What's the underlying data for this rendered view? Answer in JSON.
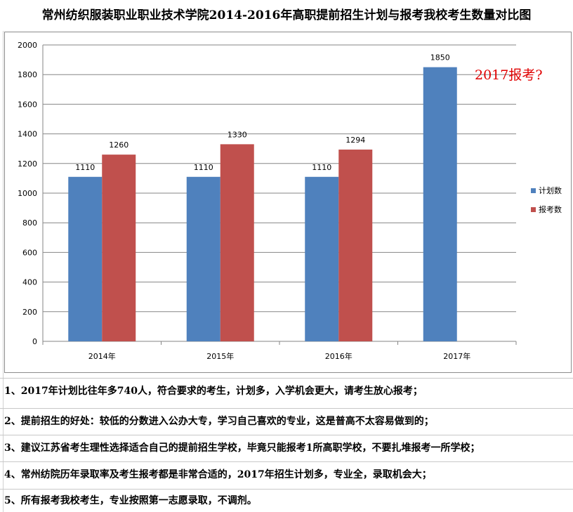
{
  "title": "常州纺织服装职业职业技术学院2014-2016年高职提前招生计划与报考我校考生数量对比图",
  "annotation": "2017报考?",
  "notes": [
    "1、2017年计划比往年多740人，符合要求的考生，计划多，入学机会更大，请考生放心报考；",
    "2、提前招生的好处：较低的分数进入公办大专，学习自己喜欢的专业，这是普高不太容易做到的；",
    "3、建议江苏省考生理性选择适合自己的提前招生学校，毕竟只能报考1所高职学校，不要扎堆报考一所学校；",
    "4、常州纺院历年录取率及考生报考都是非常合适的，2017年招生计划多，专业全，录取机会大；",
    "5、所有报考我校考生，专业按照第一志愿录取，不调剂。"
  ],
  "chart_data": {
    "type": "bar",
    "categories": [
      "2014年",
      "2015年",
      "2016年",
      "2017年"
    ],
    "series": [
      {
        "name": "计划数",
        "color": "#4f81bd",
        "values": [
          1110,
          1110,
          1110,
          1850
        ]
      },
      {
        "name": "报考数",
        "color": "#c0504d",
        "values": [
          1260,
          1330,
          1294,
          null
        ]
      }
    ],
    "ylim": [
      0,
      2000
    ],
    "yticks": [
      0,
      200,
      400,
      600,
      800,
      1000,
      1200,
      1400,
      1600,
      1800,
      2000
    ],
    "grid": true,
    "legend": "right",
    "data_labels": true
  }
}
